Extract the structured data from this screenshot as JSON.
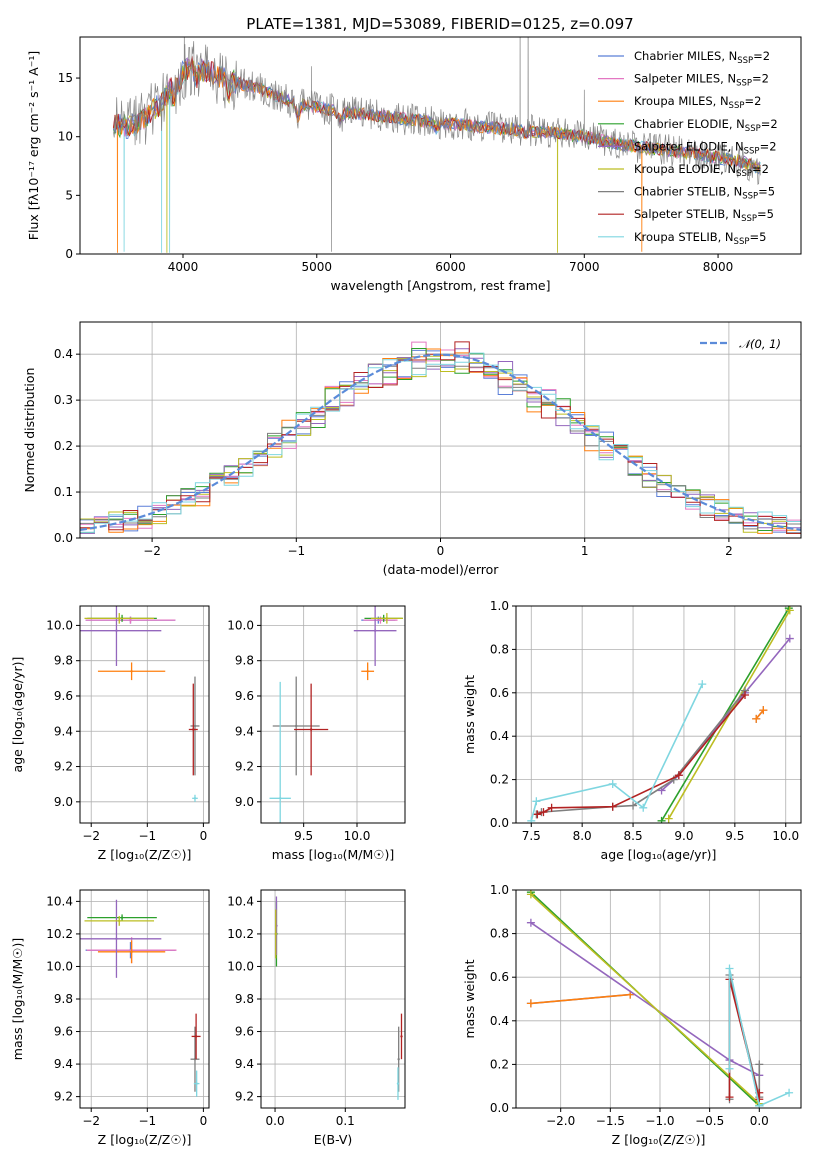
{
  "figure_title": "PLATE=1381, MJD=53089, FIBERID=0125, z=0.097",
  "colors": {
    "chabrier_miles": "#5b7fd8",
    "salpeter_miles": "#e377c2",
    "kroupa_miles": "#ff7f0e",
    "chabrier_elodie": "#2ca02c",
    "salpeter_elodie": "#9467bd",
    "kroupa_elodie": "#bcbd22",
    "chabrier_stelib": "#7f7f7f",
    "salpeter_stelib": "#b22222",
    "kroupa_stelib": "#7fd6e0",
    "normal": "#5b8bd9"
  },
  "chart_data": [
    {
      "id": "spectrum",
      "type": "line",
      "xlabel": "wavelength [Angstrom, rest frame]",
      "ylabel": "Flux [fλ10⁻¹⁷ erg cm⁻² s⁻¹ A⁻¹]",
      "xlim": [
        3230,
        8620
      ],
      "ylim": [
        0,
        18.5
      ],
      "xticks": [
        4000,
        5000,
        6000,
        7000,
        8000
      ],
      "yticks": [
        0,
        5,
        10,
        15
      ],
      "legend_position": "right",
      "legend": [
        {
          "key": "chabrier_miles",
          "base": "Chabrier MILES, N",
          "sub": "SSP",
          "suffix": "=2"
        },
        {
          "key": "salpeter_miles",
          "base": "Salpeter MILES, N",
          "sub": "SSP",
          "suffix": "=2"
        },
        {
          "key": "kroupa_miles",
          "base": "Kroupa MILES, N",
          "sub": "SSP",
          "suffix": "=2"
        },
        {
          "key": "chabrier_elodie",
          "base": "Chabrier ELODIE, N",
          "sub": "SSP",
          "suffix": "=2"
        },
        {
          "key": "salpeter_elodie",
          "base": "Salpeter ELODIE, N",
          "sub": "SSP",
          "suffix": "=2"
        },
        {
          "key": "kroupa_elodie",
          "base": "Kroupa ELODIE, N",
          "sub": "SSP",
          "suffix": "=2"
        },
        {
          "key": "chabrier_stelib",
          "base": "Chabrier STELIB, N",
          "sub": "SSP",
          "suffix": "=5"
        },
        {
          "key": "salpeter_stelib",
          "base": "Salpeter STELIB, N",
          "sub": "SSP",
          "suffix": "=5"
        },
        {
          "key": "kroupa_stelib",
          "base": "Kroupa STELIB, N",
          "sub": "SSP",
          "suffix": "=5"
        }
      ],
      "continuum": [
        [
          3500,
          11.0
        ],
        [
          3600,
          10.8
        ],
        [
          3700,
          11.5
        ],
        [
          3850,
          13.0
        ],
        [
          3950,
          15.0
        ],
        [
          4050,
          16.0
        ],
        [
          4200,
          15.5
        ],
        [
          4400,
          14.6
        ],
        [
          4600,
          14.0
        ],
        [
          4800,
          13.0
        ],
        [
          5000,
          12.5
        ],
        [
          5300,
          12.0
        ],
        [
          5600,
          11.6
        ],
        [
          6000,
          11.1
        ],
        [
          6500,
          10.6
        ],
        [
          6800,
          10.3
        ],
        [
          7000,
          10.0
        ],
        [
          7200,
          9.5
        ],
        [
          7500,
          9.0
        ],
        [
          7800,
          8.6
        ],
        [
          8200,
          7.8
        ],
        [
          8300,
          7.3
        ]
      ]
    },
    {
      "id": "residuals",
      "type": "histogram",
      "xlabel": "(data-model)/error",
      "ylabel": "Normed distribution",
      "xlim": [
        -2.5,
        2.5
      ],
      "ylim": [
        0,
        0.47
      ],
      "xticks": [
        -2,
        -1,
        0,
        1,
        2
      ],
      "yticks": [
        0.0,
        0.1,
        0.2,
        0.3,
        0.4
      ],
      "legend": "𝒩(0, 1)",
      "legend_position": "top-right",
      "bin_width": 0.1
    },
    {
      "id": "age_vs_Z",
      "type": "scatter",
      "xlabel": "Z [log₁₀(Z/Z☉)]",
      "ylabel": "age  [log₁₀(age/yr)]",
      "xlim": [
        -2.2,
        0.1
      ],
      "ylim": [
        8.88,
        10.11
      ],
      "xticks": [
        -2,
        -1,
        0
      ],
      "yticks": [
        9.0,
        9.2,
        9.4,
        9.6,
        9.8,
        10.0
      ],
      "points": [
        {
          "key": "chabrier_miles",
          "x": -1.3,
          "y": 10.03,
          "dx": 0.8,
          "dy": 0.02
        },
        {
          "key": "salpeter_miles",
          "x": -1.3,
          "y": 10.03,
          "dx": 0.8,
          "dy": 0.02
        },
        {
          "key": "kroupa_miles",
          "x": -1.28,
          "y": 9.74,
          "dx": 0.6,
          "dy": 0.05
        },
        {
          "key": "chabrier_elodie",
          "x": -1.45,
          "y": 10.04,
          "dx": 0.62,
          "dy": 0.02
        },
        {
          "key": "salpeter_elodie",
          "x": -1.55,
          "y": 9.97,
          "dx": 0.8,
          "dy": 0.2
        },
        {
          "key": "kroupa_elodie",
          "x": -1.5,
          "y": 10.04,
          "dx": 0.62,
          "dy": 0.03
        },
        {
          "key": "chabrier_stelib",
          "x": -0.15,
          "y": 9.43,
          "dx": 0.08,
          "dy": 0.28
        },
        {
          "key": "salpeter_stelib",
          "x": -0.18,
          "y": 9.41,
          "dx": 0.08,
          "dy": 0.26
        },
        {
          "key": "kroupa_stelib",
          "x": -0.15,
          "y": 9.02,
          "dx": 0.05,
          "dy": 0.02
        }
      ]
    },
    {
      "id": "age_vs_mass",
      "type": "scatter",
      "xlabel": "mass [log₁₀(M/M☉)]",
      "ylabel": "",
      "xlim": [
        9.1,
        10.45
      ],
      "ylim": [
        8.88,
        10.11
      ],
      "xticks": [
        9.5,
        10.0
      ],
      "yticks": [
        9.0,
        9.2,
        9.4,
        9.6,
        9.8,
        10.0
      ],
      "points": [
        {
          "key": "chabrier_miles",
          "x": 10.2,
          "y": 10.03,
          "dx": 0.16,
          "dy": 0.02
        },
        {
          "key": "salpeter_miles",
          "x": 10.22,
          "y": 10.03,
          "dx": 0.16,
          "dy": 0.02
        },
        {
          "key": "kroupa_miles",
          "x": 10.1,
          "y": 9.74,
          "dx": 0.06,
          "dy": 0.05
        },
        {
          "key": "chabrier_elodie",
          "x": 10.25,
          "y": 10.04,
          "dx": 0.18,
          "dy": 0.02
        },
        {
          "key": "salpeter_elodie",
          "x": 10.17,
          "y": 9.97,
          "dx": 0.2,
          "dy": 0.2
        },
        {
          "key": "kroupa_elodie",
          "x": 10.28,
          "y": 10.04,
          "dx": 0.15,
          "dy": 0.03
        },
        {
          "key": "chabrier_stelib",
          "x": 9.43,
          "y": 9.43,
          "dx": 0.22,
          "dy": 0.28
        },
        {
          "key": "salpeter_stelib",
          "x": 9.57,
          "y": 9.41,
          "dx": 0.16,
          "dy": 0.26
        },
        {
          "key": "kroupa_stelib",
          "x": 9.28,
          "y": 9.02,
          "dx": 0.1,
          "dy": 0.66
        }
      ]
    },
    {
      "id": "weight_vs_age",
      "type": "line",
      "xlabel": "age  [log₁₀(age/yr)]",
      "ylabel": "mass weight",
      "xlim": [
        7.35,
        10.15
      ],
      "ylim": [
        0,
        1.0
      ],
      "xticks": [
        7.5,
        8.0,
        8.5,
        9.0,
        9.5,
        10.0
      ],
      "yticks": [
        0.0,
        0.2,
        0.4,
        0.6,
        0.8,
        1.0
      ],
      "series": [
        {
          "key": "chabrier_miles",
          "x": [
            9.71,
            9.78
          ],
          "y": [
            0.48,
            0.52
          ]
        },
        {
          "key": "kroupa_miles",
          "x": [
            9.71,
            9.78
          ],
          "y": [
            0.48,
            0.52
          ]
        },
        {
          "key": "chabrier_elodie",
          "x": [
            8.78,
            10.03
          ],
          "y": [
            0.01,
            0.99
          ]
        },
        {
          "key": "salpeter_elodie",
          "x": [
            8.78,
            8.95,
            9.6,
            10.04
          ],
          "y": [
            0.15,
            0.22,
            0.6,
            0.85
          ]
        },
        {
          "key": "kroupa_elodie",
          "x": [
            8.85,
            10.04
          ],
          "y": [
            0.02,
            0.98
          ]
        },
        {
          "key": "chabrier_stelib",
          "x": [
            7.55,
            7.6,
            8.3,
            8.5,
            8.9,
            9.6
          ],
          "y": [
            0.04,
            0.05,
            0.075,
            0.08,
            0.2,
            0.61
          ]
        },
        {
          "key": "salpeter_stelib",
          "x": [
            7.56,
            7.62,
            7.7,
            8.3,
            8.95,
            9.6
          ],
          "y": [
            0.04,
            0.05,
            0.07,
            0.075,
            0.22,
            0.59
          ]
        },
        {
          "key": "kroupa_stelib",
          "x": [
            7.5,
            7.55,
            8.3,
            8.6,
            9.18
          ],
          "y": [
            0.01,
            0.1,
            0.18,
            0.07,
            0.64
          ]
        }
      ]
    },
    {
      "id": "mass_vs_Z",
      "type": "scatter",
      "xlabel": "Z [log₁₀(Z/Z☉)]",
      "ylabel": "mass [log₁₀(M/M☉)]",
      "xlim": [
        -2.2,
        0.1
      ],
      "ylim": [
        9.13,
        10.47
      ],
      "xticks": [
        -2,
        -1,
        0
      ],
      "yticks": [
        9.2,
        9.4,
        9.6,
        9.8,
        10.0,
        10.2,
        10.4
      ],
      "points": [
        {
          "key": "chabrier_miles",
          "x": -1.3,
          "y": 10.1,
          "dx": 0.8,
          "dy": 0.05
        },
        {
          "key": "salpeter_miles",
          "x": -1.28,
          "y": 10.1,
          "dx": 0.8,
          "dy": 0.08
        },
        {
          "key": "kroupa_miles",
          "x": -1.28,
          "y": 10.09,
          "dx": 0.6,
          "dy": 0.07
        },
        {
          "key": "chabrier_elodie",
          "x": -1.45,
          "y": 10.3,
          "dx": 0.62,
          "dy": 0.02
        },
        {
          "key": "salpeter_elodie",
          "x": -1.55,
          "y": 10.17,
          "dx": 0.8,
          "dy": 0.24
        },
        {
          "key": "kroupa_elodie",
          "x": -1.5,
          "y": 10.28,
          "dx": 0.62,
          "dy": 0.03
        },
        {
          "key": "chabrier_stelib",
          "x": -0.15,
          "y": 9.43,
          "dx": 0.08,
          "dy": 0.2
        },
        {
          "key": "salpeter_stelib",
          "x": -0.13,
          "y": 9.57,
          "dx": 0.08,
          "dy": 0.14
        },
        {
          "key": "kroupa_stelib",
          "x": -0.12,
          "y": 9.28,
          "dx": 0.05,
          "dy": 0.08
        }
      ]
    },
    {
      "id": "mass_vs_ebv",
      "type": "scatter",
      "xlabel": "E(B-V)",
      "ylabel": "",
      "xlim": [
        -0.02,
        0.185
      ],
      "ylim": [
        9.13,
        10.47
      ],
      "xticks": [
        0.0,
        0.1
      ],
      "yticks": [
        9.2,
        9.4,
        9.6,
        9.8,
        10.0,
        10.2,
        10.4
      ],
      "points": [
        {
          "key": "chabrier_elodie",
          "x": 0.002,
          "y": 10.2,
          "dx": 0,
          "dy": 0.2
        },
        {
          "key": "salpeter_elodie",
          "x": 0.002,
          "y": 10.25,
          "dx": 0,
          "dy": 0.18
        },
        {
          "key": "kroupa_elodie",
          "x": 0.001,
          "y": 10.2,
          "dx": 0,
          "dy": 0.15
        },
        {
          "key": "chabrier_stelib",
          "x": 0.176,
          "y": 9.43,
          "dx": 0,
          "dy": 0.2
        },
        {
          "key": "salpeter_stelib",
          "x": 0.18,
          "y": 9.57,
          "dx": 0,
          "dy": 0.14
        },
        {
          "key": "kroupa_stelib",
          "x": 0.175,
          "y": 9.28,
          "dx": 0,
          "dy": 0.1
        }
      ]
    },
    {
      "id": "weight_vs_Z",
      "type": "line",
      "xlabel": "Z [log₁₀(Z/Z☉)]",
      "ylabel": "mass weight",
      "xlim": [
        -2.45,
        0.42
      ],
      "ylim": [
        0,
        1.0
      ],
      "xticks": [
        -2.0,
        -1.5,
        -1.0,
        -0.5,
        0.0
      ],
      "yticks": [
        0.0,
        0.2,
        0.4,
        0.6,
        0.8,
        1.0
      ],
      "series": [
        {
          "key": "chabrier_miles",
          "x": [
            -2.3,
            -1.3
          ],
          "y": [
            0.48,
            0.52
          ]
        },
        {
          "key": "kroupa_miles",
          "x": [
            -2.3,
            -1.3
          ],
          "y": [
            0.48,
            0.52
          ]
        },
        {
          "key": "chabrier_elodie",
          "x": [
            -2.3,
            0.0
          ],
          "y": [
            0.99,
            0.01
          ]
        },
        {
          "key": "salpeter_elodie",
          "x": [
            -2.3,
            -0.3,
            0.0
          ],
          "y": [
            0.85,
            0.22,
            0.15
          ]
        },
        {
          "key": "kroupa_elodie",
          "x": [
            -2.3,
            0.0
          ],
          "y": [
            0.98,
            0.02
          ]
        },
        {
          "key": "chabrier_stelib",
          "x": [
            -0.3,
            -0.3,
            0.0,
            0.0
          ],
          "y": [
            0.04,
            0.61,
            0.05,
            0.2
          ]
        },
        {
          "key": "salpeter_stelib",
          "x": [
            -0.3,
            -0.3,
            0.0,
            0.0
          ],
          "y": [
            0.05,
            0.59,
            0.04,
            0.07
          ]
        },
        {
          "key": "kroupa_stelib",
          "x": [
            -0.3,
            -0.3,
            0.0,
            0.3
          ],
          "y": [
            0.18,
            0.64,
            0.01,
            0.07
          ]
        }
      ]
    }
  ]
}
